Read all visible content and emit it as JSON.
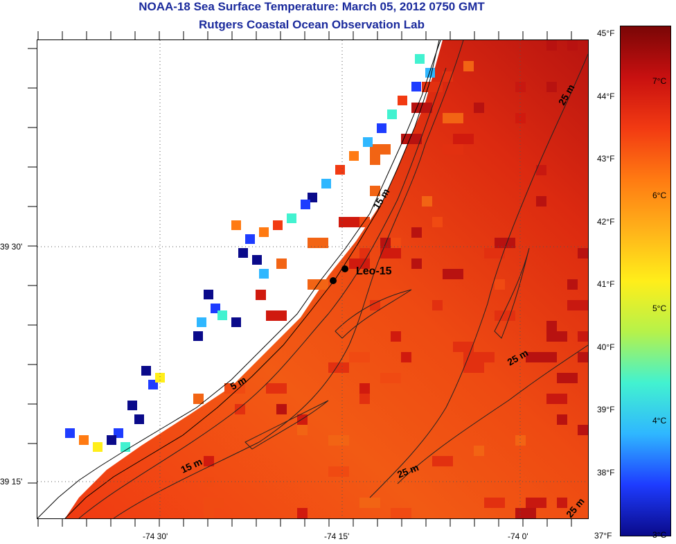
{
  "header": {
    "title": "NOAA-18 Sea Surface Temperature:  March 05, 2012 0750 GMT",
    "subtitle": "Rutgers Coastal Ocean Observation Lab"
  },
  "map": {
    "lon_labels": [
      "-74 30'",
      "-74 15'",
      "-74 0'"
    ],
    "lat_labels": [
      "39 30'",
      "39 15'"
    ],
    "station_label": "Leo-15",
    "depth_labels": [
      "25 m",
      "15 m",
      "5 m",
      "25 m",
      "15 m",
      "25 m",
      "25 m"
    ],
    "land_color": "#ffffff",
    "cloud_color": "#ffffff"
  },
  "colorbar": {
    "fahrenheit_labels": [
      "45°F",
      "44°F",
      "43°F",
      "42°F",
      "41°F",
      "40°F",
      "39°F",
      "38°F",
      "37°F"
    ],
    "celsius_labels": [
      "7°C",
      "6°C",
      "5°C",
      "4°C",
      "3°C"
    ],
    "range_c": [
      3,
      7.5
    ],
    "colors": [
      "#0a0a8a",
      "#1e3cff",
      "#2fb7ff",
      "#42f2d0",
      "#b6f24a",
      "#ffee1a",
      "#ffb21a",
      "#ff7a12",
      "#f23a12",
      "#c81010",
      "#7a0606"
    ]
  }
}
